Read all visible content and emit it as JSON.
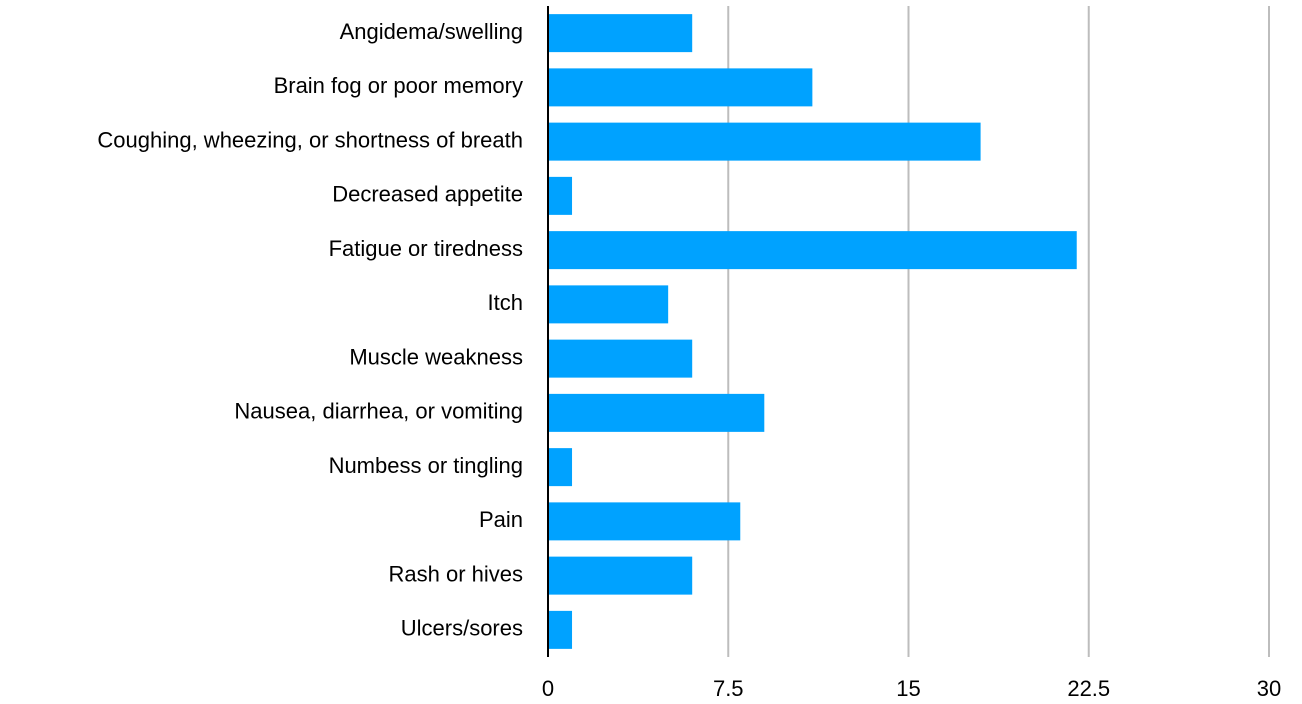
{
  "chart_data": {
    "type": "bar",
    "categories": [
      "Angidema/swelling",
      "Brain fog or poor memory",
      "Coughing, wheezing, or shortness of breath",
      "Decreased appetite",
      "Fatigue or tiredness",
      "Itch",
      "Muscle weakness",
      "Nausea, diarrhea, or vomiting",
      "Numbess or tingling",
      "Pain",
      "Rash or hives",
      "Ulcers/sores"
    ],
    "values": [
      6,
      11,
      18,
      1,
      22,
      5,
      6,
      9,
      1,
      8,
      6,
      1
    ],
    "color": "#00a2ff",
    "xlim": [
      0,
      30
    ],
    "xticks": [
      0,
      7.5,
      15,
      22.5,
      30
    ],
    "grid": true
  }
}
